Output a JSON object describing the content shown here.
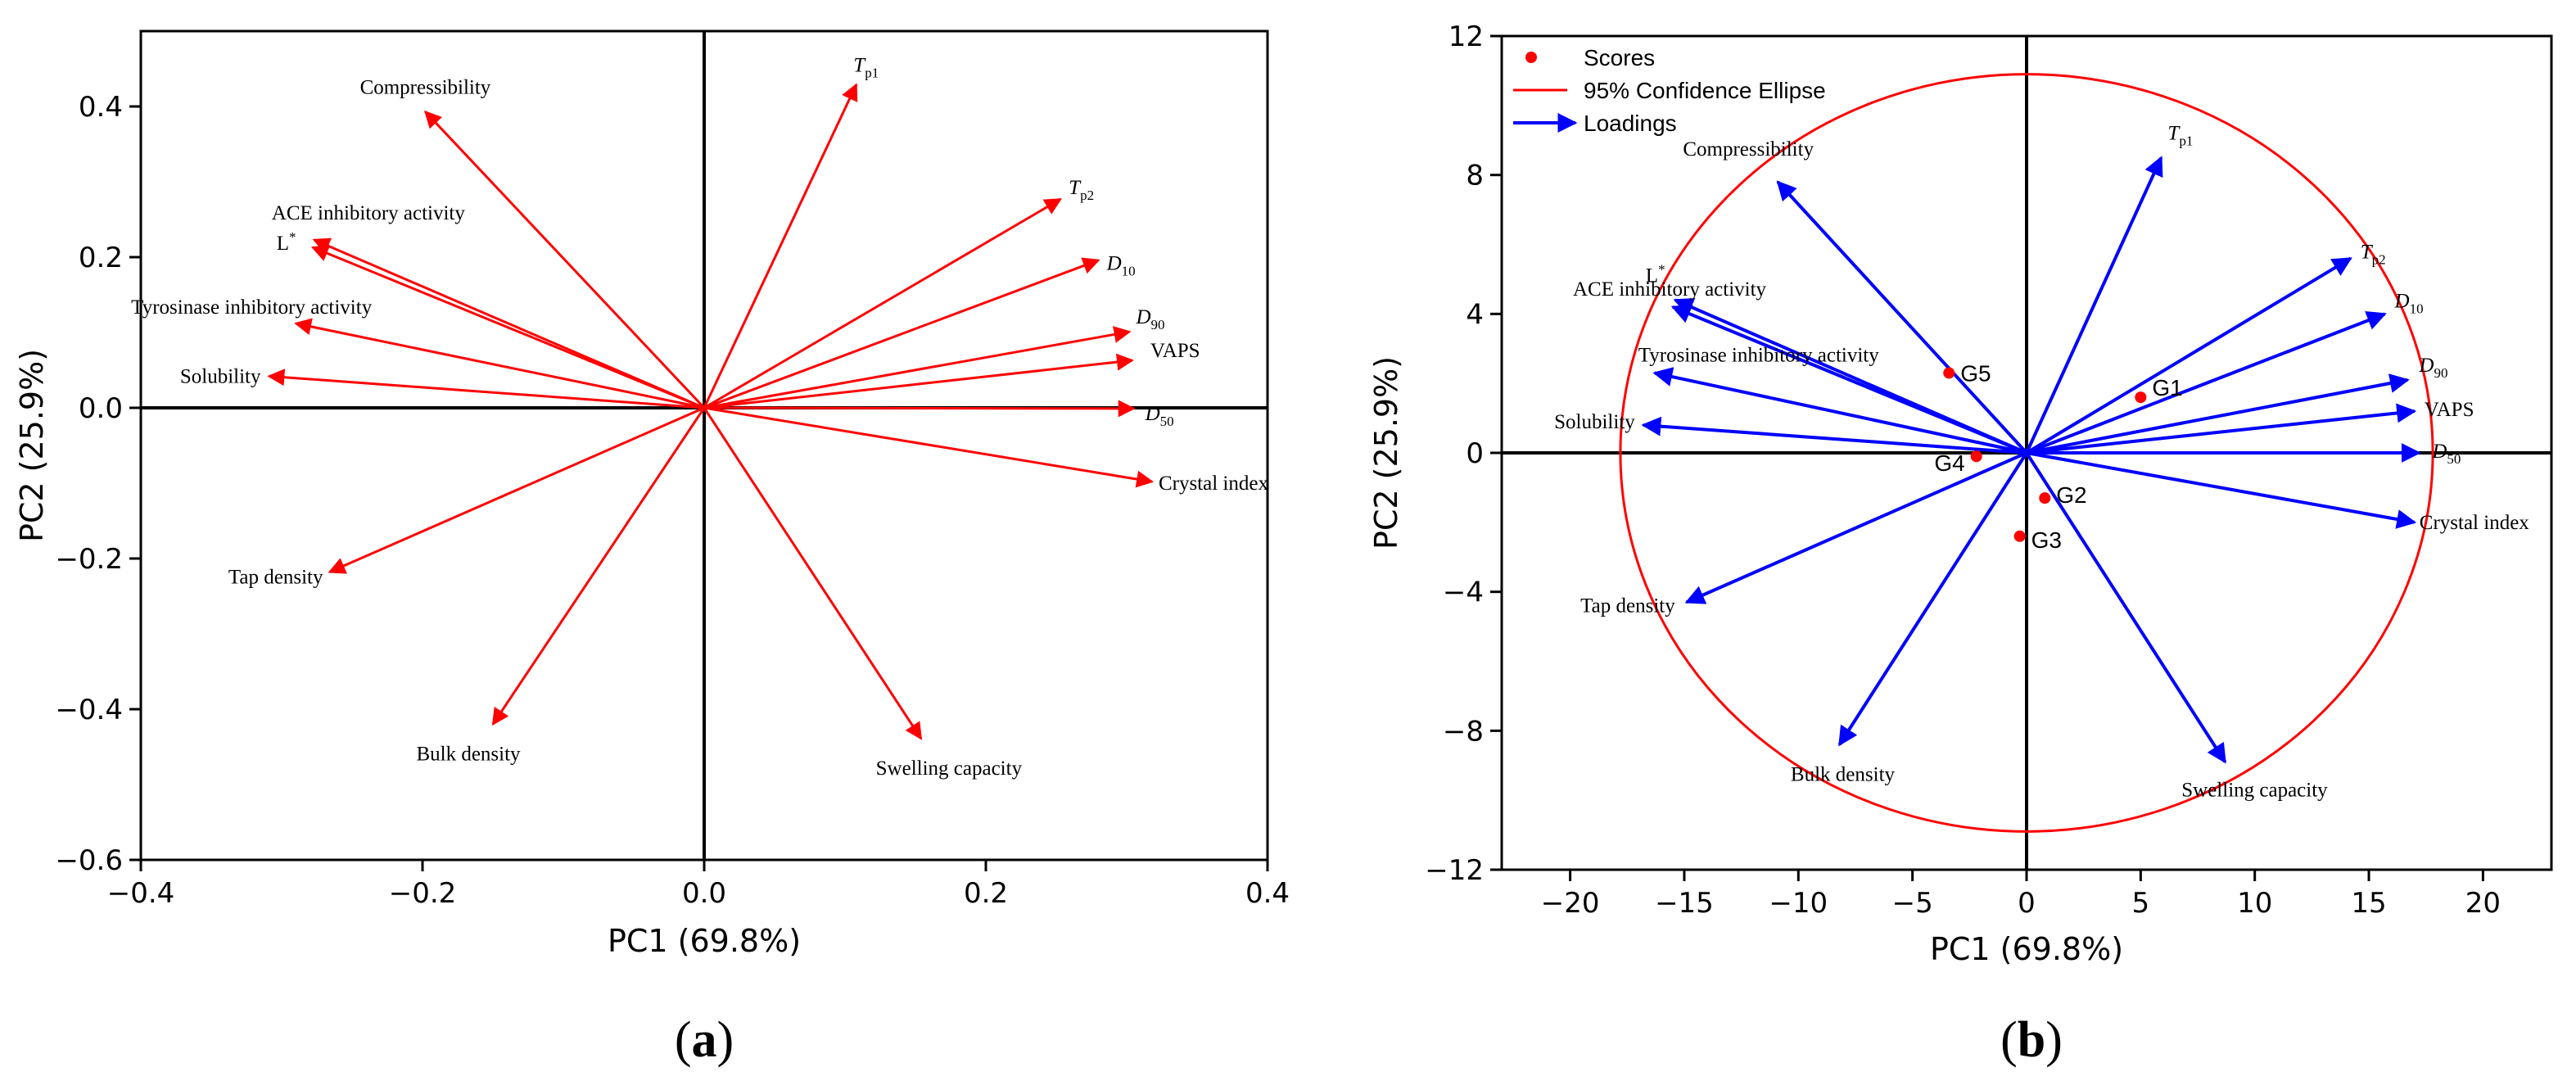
{
  "chart_data": [
    {
      "panel": "a",
      "type": "scatter",
      "subtype": "pca-loadings-biplot",
      "caption_open": "(",
      "caption_letter": "a",
      "caption_close": ")",
      "xlabel": "PC1 (69.8%)",
      "ylabel": "PC2 (25.9%)",
      "xlim": [
        -0.4,
        0.4
      ],
      "ylim": [
        -0.6,
        0.5
      ],
      "xticks": [
        -0.4,
        -0.2,
        0.0,
        0.2,
        0.4
      ],
      "xtick_labels": [
        "−0.4",
        "−0.2",
        "0.0",
        "0.2",
        "0.4"
      ],
      "yticks": [
        -0.6,
        -0.4,
        -0.2,
        0.0,
        0.2,
        0.4
      ],
      "ytick_labels": [
        "−0.6",
        "−0.4",
        "−0.2",
        "0.0",
        "0.2",
        "0.4"
      ],
      "arrow_color": "#ff0000",
      "loadings": [
        {
          "name": "Compressibility",
          "x": -0.198,
          "y": 0.393
        },
        {
          "name": "T",
          "sub": "p1",
          "italic": true,
          "x": 0.108,
          "y": 0.429
        },
        {
          "name": "T",
          "sub": "p2",
          "italic": true,
          "x": 0.253,
          "y": 0.277
        },
        {
          "name": "D",
          "sub": "10",
          "italic": true,
          "x": 0.28,
          "y": 0.196
        },
        {
          "name": "ACE inhibitory activity",
          "x": -0.278,
          "y": 0.213
        },
        {
          "name": "L",
          "sup": "*",
          "x": -0.277,
          "y": 0.223
        },
        {
          "name": "Tyrosinase inhibitory activity",
          "x": -0.29,
          "y": 0.112
        },
        {
          "name": "Solubility",
          "x": -0.309,
          "y": 0.042
        },
        {
          "name": "D",
          "sub": "90",
          "italic": true,
          "x": 0.302,
          "y": 0.101
        },
        {
          "name": "VAPS",
          "x": 0.304,
          "y": 0.063
        },
        {
          "name": "D",
          "sub": "50",
          "italic": true,
          "x": 0.305,
          "y": -0.001
        },
        {
          "name": "Crystal index",
          "x": 0.318,
          "y": -0.098
        },
        {
          "name": "Tap density",
          "x": -0.266,
          "y": -0.218
        },
        {
          "name": "Bulk density",
          "x": -0.15,
          "y": -0.42
        },
        {
          "name": "Swelling capacity",
          "x": 0.154,
          "y": -0.439
        }
      ]
    },
    {
      "panel": "b",
      "type": "scatter",
      "subtype": "pca-biplot-with-scores",
      "caption_open": "(",
      "caption_letter": "b",
      "caption_close": ")",
      "xlabel": "PC1 (69.8%)",
      "ylabel": "PC2 (25.9%)",
      "xlim": [
        -23,
        23
      ],
      "ylim": [
        -12,
        12
      ],
      "xticks": [
        -20,
        -15,
        -10,
        -5,
        0,
        5,
        10,
        15,
        20
      ],
      "xtick_labels": [
        "−20",
        "−15",
        "−10",
        "−5",
        "0",
        "5",
        "10",
        "15",
        "20"
      ],
      "yticks": [
        -12,
        -8,
        -4,
        0,
        4,
        8,
        12
      ],
      "ytick_labels": [
        "−12",
        "−8",
        "−4",
        "0",
        "4",
        "8",
        "12"
      ],
      "score_color": "#ff0000",
      "ellipse_color": "#ff0000",
      "arrow_color": "#0000ff",
      "ellipse": {
        "cx": 0,
        "cy": 0,
        "rx": 17.8,
        "ry": 10.9
      },
      "legend": [
        {
          "label": "Scores",
          "kind": "dot"
        },
        {
          "label": "95% Confidence Ellipse",
          "kind": "line"
        },
        {
          "label": "Loadings",
          "kind": "arrow"
        }
      ],
      "scores": [
        {
          "name": "G1",
          "x": 5.0,
          "y": 1.6
        },
        {
          "name": "G2",
          "x": 0.8,
          "y": -1.3
        },
        {
          "name": "G3",
          "x": -0.3,
          "y": -2.4
        },
        {
          "name": "G4",
          "x": -2.2,
          "y": -0.1
        },
        {
          "name": "G5",
          "x": -3.4,
          "y": 2.3
        }
      ],
      "loadings": [
        {
          "name": "T",
          "sub": "p1",
          "italic": true,
          "x": 5.9,
          "y": 8.5
        },
        {
          "name": "T",
          "sub": "p2",
          "italic": true,
          "x": 14.2,
          "y": 5.6
        },
        {
          "name": "Compressibility",
          "x": -10.9,
          "y": 7.8
        },
        {
          "name": "L",
          "sup": "*",
          "x": -15.4,
          "y": 4.4
        },
        {
          "name": "ACE inhibitory activity",
          "x": -15.5,
          "y": 4.2
        },
        {
          "name": "D",
          "sub": "10",
          "italic": true,
          "x": 15.7,
          "y": 4.0
        },
        {
          "name": "Tyrosinase inhibitory activity",
          "x": -16.3,
          "y": 2.3
        },
        {
          "name": "Solubility",
          "x": -16.8,
          "y": 0.8
        },
        {
          "name": "D",
          "sub": "90",
          "italic": true,
          "x": 16.7,
          "y": 2.1
        },
        {
          "name": "VAPS",
          "x": 17.0,
          "y": 1.2
        },
        {
          "name": "D",
          "sub": "50",
          "italic": true,
          "x": 17.2,
          "y": 0.0
        },
        {
          "name": "Crystal index",
          "x": 17.0,
          "y": -2.0
        },
        {
          "name": "Tap density",
          "x": -14.9,
          "y": -4.3
        },
        {
          "name": "Bulk density",
          "x": -8.2,
          "y": -8.4
        },
        {
          "name": "Swelling capacity",
          "x": 8.7,
          "y": -8.9
        }
      ]
    }
  ]
}
